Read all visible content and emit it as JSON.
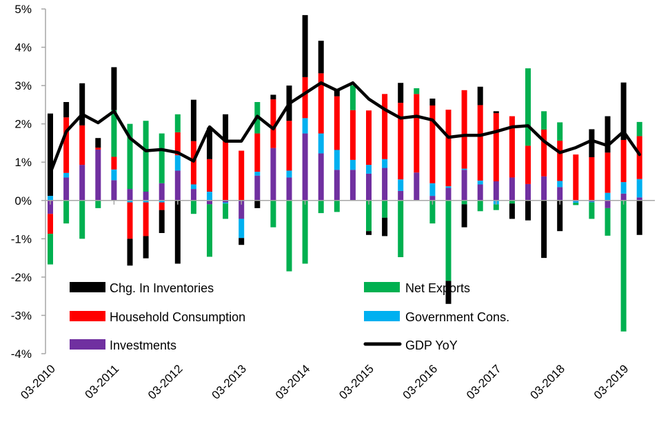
{
  "chart_data": {
    "type": "bar",
    "stacked": true,
    "title": "",
    "xlabel": "",
    "ylabel": "",
    "ylim": [
      -4,
      5
    ],
    "yticks": [
      5,
      4,
      3,
      2,
      1,
      0,
      -1,
      -2,
      -3,
      -4
    ],
    "ytick_labels": [
      "5%",
      "4%",
      "3%",
      "2%",
      "1%",
      "0%",
      "-1%",
      "-2%",
      "-3%",
      "-4%"
    ],
    "grid": false,
    "legend_position": "bottom-inside",
    "x_tick_labels": [
      "03-2010",
      "03-2011",
      "03-2012",
      "03-2013",
      "03-2014",
      "03-2015",
      "03-2016",
      "03-2017",
      "03-2018",
      "03-2019"
    ],
    "x_tick_every": 4,
    "categories": [
      "Q1-2010",
      "Q2-2010",
      "Q3-2010",
      "Q4-2010",
      "Q1-2011",
      "Q2-2011",
      "Q3-2011",
      "Q4-2011",
      "Q1-2012",
      "Q2-2012",
      "Q3-2012",
      "Q4-2012",
      "Q1-2013",
      "Q2-2013",
      "Q3-2013",
      "Q4-2013",
      "Q1-2014",
      "Q2-2014",
      "Q3-2014",
      "Q4-2014",
      "Q1-2015",
      "Q2-2015",
      "Q3-2015",
      "Q4-2015",
      "Q1-2016",
      "Q2-2016",
      "Q3-2016",
      "Q4-2016",
      "Q1-2017",
      "Q2-2017",
      "Q3-2017",
      "Q4-2017",
      "Q1-2018",
      "Q2-2018",
      "Q3-2018",
      "Q4-2018",
      "Q1-2019",
      "Q2-2019"
    ],
    "series": [
      {
        "name": "Investments",
        "type": "bar",
        "color": "#7030A0",
        "values": [
          -0.35,
          0.6,
          0.93,
          1.33,
          0.53,
          0.3,
          0.23,
          0.45,
          0.78,
          0.3,
          -0.1,
          -0.05,
          -0.48,
          0.65,
          1.37,
          0.6,
          1.75,
          1.23,
          0.8,
          0.8,
          0.7,
          0.85,
          0.25,
          0.73,
          0.12,
          0.33,
          0.8,
          0.42,
          0.5,
          0.6,
          0.43,
          0.63,
          0.35,
          -0.02,
          -0.03,
          -0.2,
          0.18,
          0.08
        ]
      },
      {
        "name": "Government Cons.",
        "type": "bar",
        "color": "#00B0F0",
        "values": [
          0.12,
          0.12,
          0.0,
          0.0,
          0.28,
          -0.05,
          -0.05,
          -0.05,
          0.4,
          0.12,
          0.23,
          -0.03,
          -0.5,
          0.1,
          0.0,
          0.18,
          0.4,
          0.52,
          0.52,
          0.26,
          0.23,
          0.23,
          0.3,
          0.0,
          0.33,
          0.04,
          0.03,
          0.1,
          -0.1,
          0.0,
          0.0,
          0.0,
          0.16,
          -0.04,
          -0.02,
          0.2,
          0.3,
          0.48
        ]
      },
      {
        "name": "Household Consumption",
        "type": "bar",
        "color": "#FF0000",
        "values": [
          -0.52,
          1.45,
          1.03,
          0.05,
          0.33,
          -0.95,
          -0.88,
          -0.2,
          0.6,
          1.13,
          0.85,
          1.55,
          1.3,
          1.0,
          1.27,
          1.3,
          1.07,
          1.57,
          1.4,
          1.3,
          1.42,
          1.7,
          2.0,
          2.05,
          2.03,
          2.0,
          2.05,
          1.97,
          1.78,
          1.6,
          1.0,
          1.22,
          1.05,
          1.2,
          1.13,
          1.05,
          1.1,
          1.12
        ]
      },
      {
        "name": "Net Exports",
        "type": "bar",
        "color": "#00B050",
        "values": [
          -0.8,
          -0.6,
          -1.0,
          -0.2,
          1.22,
          1.7,
          1.85,
          1.3,
          0.47,
          -0.35,
          -1.37,
          -0.4,
          0.0,
          0.82,
          -0.7,
          -1.85,
          -1.65,
          -0.33,
          -0.3,
          0.65,
          -0.8,
          -0.45,
          -1.48,
          0.15,
          -0.6,
          -2.1,
          -0.1,
          -0.28,
          -0.15,
          -0.08,
          2.02,
          0.48,
          0.48,
          -0.06,
          -0.43,
          -0.72,
          -3.42,
          0.37
        ]
      },
      {
        "name": "Chg. In Inventories",
        "type": "bar",
        "color": "#000000",
        "values": [
          2.15,
          0.4,
          1.1,
          0.25,
          1.12,
          -0.7,
          -0.58,
          -0.6,
          -1.65,
          1.08,
          0.82,
          0.7,
          -0.18,
          -0.2,
          0.12,
          0.92,
          1.62,
          0.85,
          0.18,
          0.0,
          -0.1,
          -0.48,
          0.52,
          0.0,
          0.18,
          -0.6,
          -0.6,
          0.48,
          0.05,
          -0.4,
          -0.52,
          -1.5,
          -0.8,
          0.0,
          0.73,
          0.95,
          1.5,
          -0.9
        ]
      },
      {
        "name": "GDP YoY",
        "type": "line",
        "color": "#000000",
        "values": [
          0.72,
          1.8,
          2.25,
          2.03,
          2.33,
          1.63,
          1.3,
          1.33,
          1.25,
          1.03,
          1.92,
          1.55,
          1.55,
          2.2,
          1.87,
          2.53,
          2.8,
          3.07,
          2.87,
          3.07,
          2.65,
          2.38,
          2.15,
          2.2,
          2.1,
          1.65,
          1.7,
          1.7,
          1.8,
          1.92,
          1.95,
          1.55,
          1.25,
          1.38,
          1.57,
          1.43,
          1.8,
          1.2
        ]
      }
    ]
  }
}
